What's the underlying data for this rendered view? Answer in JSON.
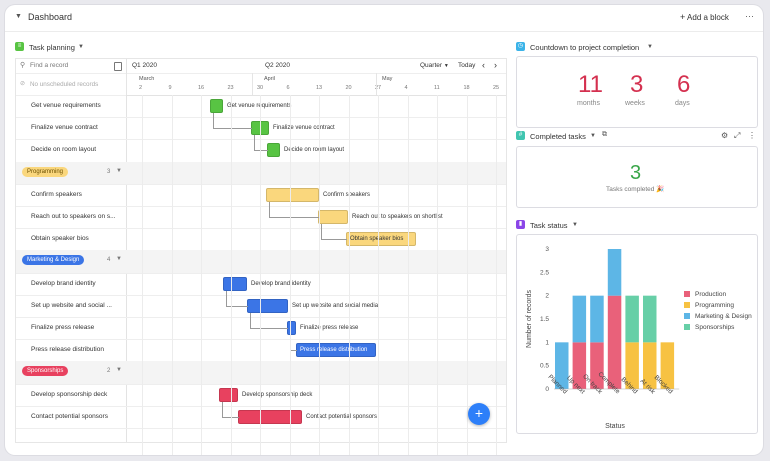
{
  "header": {
    "title": "Dashboard",
    "add_block": "Add a block",
    "more": "···"
  },
  "task_planning": {
    "title": "Task planning",
    "search_placeholder": "Find a record",
    "no_unscheduled": "No unscheduled records",
    "q1": "Q1 2020",
    "q2": "Q2 2020",
    "scale": "Quarter",
    "today": "Today",
    "months": [
      "March",
      "April",
      "May"
    ],
    "days": [
      "2",
      "9",
      "16",
      "23",
      "30",
      "6",
      "13",
      "20",
      "27",
      "4",
      "11",
      "18",
      "25"
    ],
    "rows": [
      {
        "type": "task",
        "label": "Get venue requirements"
      },
      {
        "type": "task",
        "label": "Finalize venue contract"
      },
      {
        "type": "task",
        "label": "Decide on room layout"
      },
      {
        "type": "group",
        "label": "Programming",
        "count": "3"
      },
      {
        "type": "task",
        "label": "Confirm speakers"
      },
      {
        "type": "task",
        "label": "Reach out to speakers on s..."
      },
      {
        "type": "task",
        "label": "Obtain speaker bios"
      },
      {
        "type": "group",
        "label": "Marketing & Design",
        "count": "4"
      },
      {
        "type": "task",
        "label": "Develop brand identity"
      },
      {
        "type": "task",
        "label": "Set up website and social ..."
      },
      {
        "type": "task",
        "label": "Finalize press release"
      },
      {
        "type": "task",
        "label": "Press release distribution"
      },
      {
        "type": "group",
        "label": "Sponsorships",
        "count": "2"
      },
      {
        "type": "task",
        "label": "Develop sponsorship deck"
      },
      {
        "type": "task",
        "label": "Contact potential sponsors"
      }
    ],
    "bars": [
      {
        "label": "Get venue requirements"
      },
      {
        "label": "Finalize venue contract"
      },
      {
        "label": "Decide on room layout"
      },
      {
        "label": "Confirm speakers"
      },
      {
        "label": "Reach out to speakers on shortlist"
      },
      {
        "label": "Obtain speaker bios"
      },
      {
        "label": "Develop brand identity"
      },
      {
        "label": "Set up website and social media"
      },
      {
        "label": "Finalize press release"
      },
      {
        "label": "Press release distribution"
      },
      {
        "label": "Develop sponsorship deck"
      },
      {
        "label": "Contact potential sponsors"
      }
    ],
    "colors": {
      "green": "#58c443",
      "yellow": "#fad77d",
      "blue": "#3b75e6",
      "red": "#e8415f"
    }
  },
  "countdown": {
    "title": "Countdown to project completion",
    "months_value": "11",
    "months_label": "months",
    "weeks_value": "3",
    "weeks_label": "weeks",
    "days_value": "6",
    "days_label": "days"
  },
  "completed": {
    "title": "Completed tasks",
    "value": "3",
    "label": "Tasks completed 🎉"
  },
  "task_status": {
    "title": "Task status"
  },
  "chart_data": {
    "type": "bar",
    "stacked": true,
    "xlabel": "Status",
    "ylabel": "Number of records",
    "ylim": [
      0,
      3
    ],
    "yticks": [
      "0",
      "0.5",
      "1",
      "1.5",
      "2",
      "2.5",
      "3"
    ],
    "categories": [
      "Planned",
      "Up next",
      "On track",
      "Complete",
      "Behind",
      "At risk",
      "Blocked"
    ],
    "legend_position": "right",
    "series": [
      {
        "name": "Production",
        "color": "#e9617a",
        "values": [
          0,
          1,
          1,
          2,
          0,
          0,
          0
        ]
      },
      {
        "name": "Programming",
        "color": "#f7c242",
        "values": [
          0,
          0,
          0,
          0,
          1,
          1,
          1
        ]
      },
      {
        "name": "Marketing & Design",
        "color": "#5db6e6",
        "values": [
          1,
          1,
          1,
          1,
          0,
          0,
          0
        ]
      },
      {
        "name": "Sponsorships",
        "color": "#67cfa7",
        "values": [
          0,
          0,
          0,
          0,
          1,
          1,
          0
        ]
      }
    ]
  }
}
